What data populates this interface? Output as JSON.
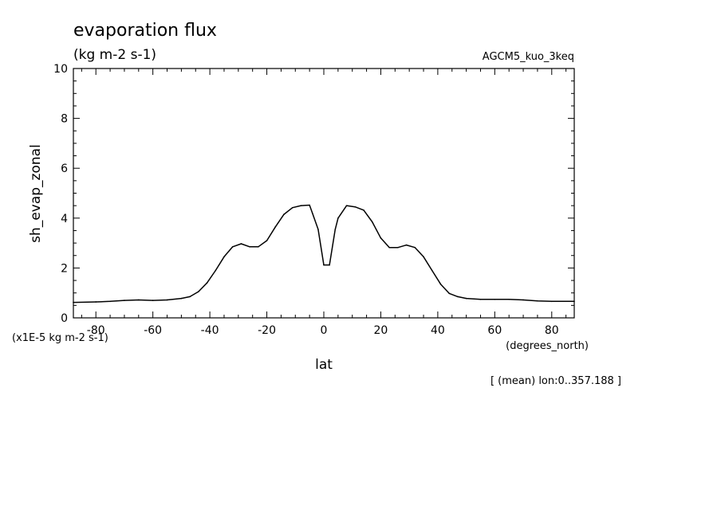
{
  "chart_data": {
    "type": "line",
    "title": "evaporation flux",
    "subtitle": "(kg m-2 s-1)",
    "dataset_label": "AGCM5_kuo_3keq",
    "xlabel": "lat",
    "x_units": "(degrees_north)",
    "ylabel": "sh_evap_zonal",
    "y_units": "(x1E-5 kg m-2 s-1)",
    "footnote": "[ (mean) lon:0..357.188 ]",
    "xlim": [
      -87.9,
      87.9
    ],
    "ylim": [
      0,
      10
    ],
    "x_ticks": [
      "-80",
      "-60",
      "-40",
      "-20",
      "0",
      "20",
      "40",
      "60",
      "80"
    ],
    "y_ticks": [
      "0",
      "2",
      "4",
      "6",
      "8",
      "10"
    ],
    "grid": false,
    "series": [
      {
        "color": "#000000",
        "x": [
          -87.9,
          -80,
          -75,
          -70,
          -65,
          -60,
          -55,
          -50,
          -47,
          -44,
          -41,
          -38,
          -35,
          -32,
          -29,
          -26,
          -23,
          -20,
          -17,
          -14,
          -11,
          -8,
          -5,
          -4,
          -2,
          0,
          2,
          4,
          5,
          8,
          11,
          14,
          17,
          20,
          23,
          26,
          29,
          32,
          35,
          38,
          41,
          44,
          47,
          50,
          55,
          60,
          65,
          70,
          75,
          80,
          87.9
        ],
        "y": [
          0.62,
          0.64,
          0.66,
          0.7,
          0.72,
          0.7,
          0.72,
          0.78,
          0.85,
          1.05,
          1.4,
          1.9,
          2.45,
          2.85,
          2.97,
          2.85,
          2.85,
          3.1,
          3.65,
          4.15,
          4.42,
          4.5,
          4.52,
          4.2,
          3.55,
          2.12,
          2.12,
          3.55,
          4.0,
          4.5,
          4.45,
          4.32,
          3.85,
          3.2,
          2.82,
          2.82,
          2.92,
          2.82,
          2.45,
          1.9,
          1.35,
          0.98,
          0.85,
          0.78,
          0.74,
          0.74,
          0.74,
          0.72,
          0.68,
          0.66,
          0.66
        ]
      }
    ]
  }
}
